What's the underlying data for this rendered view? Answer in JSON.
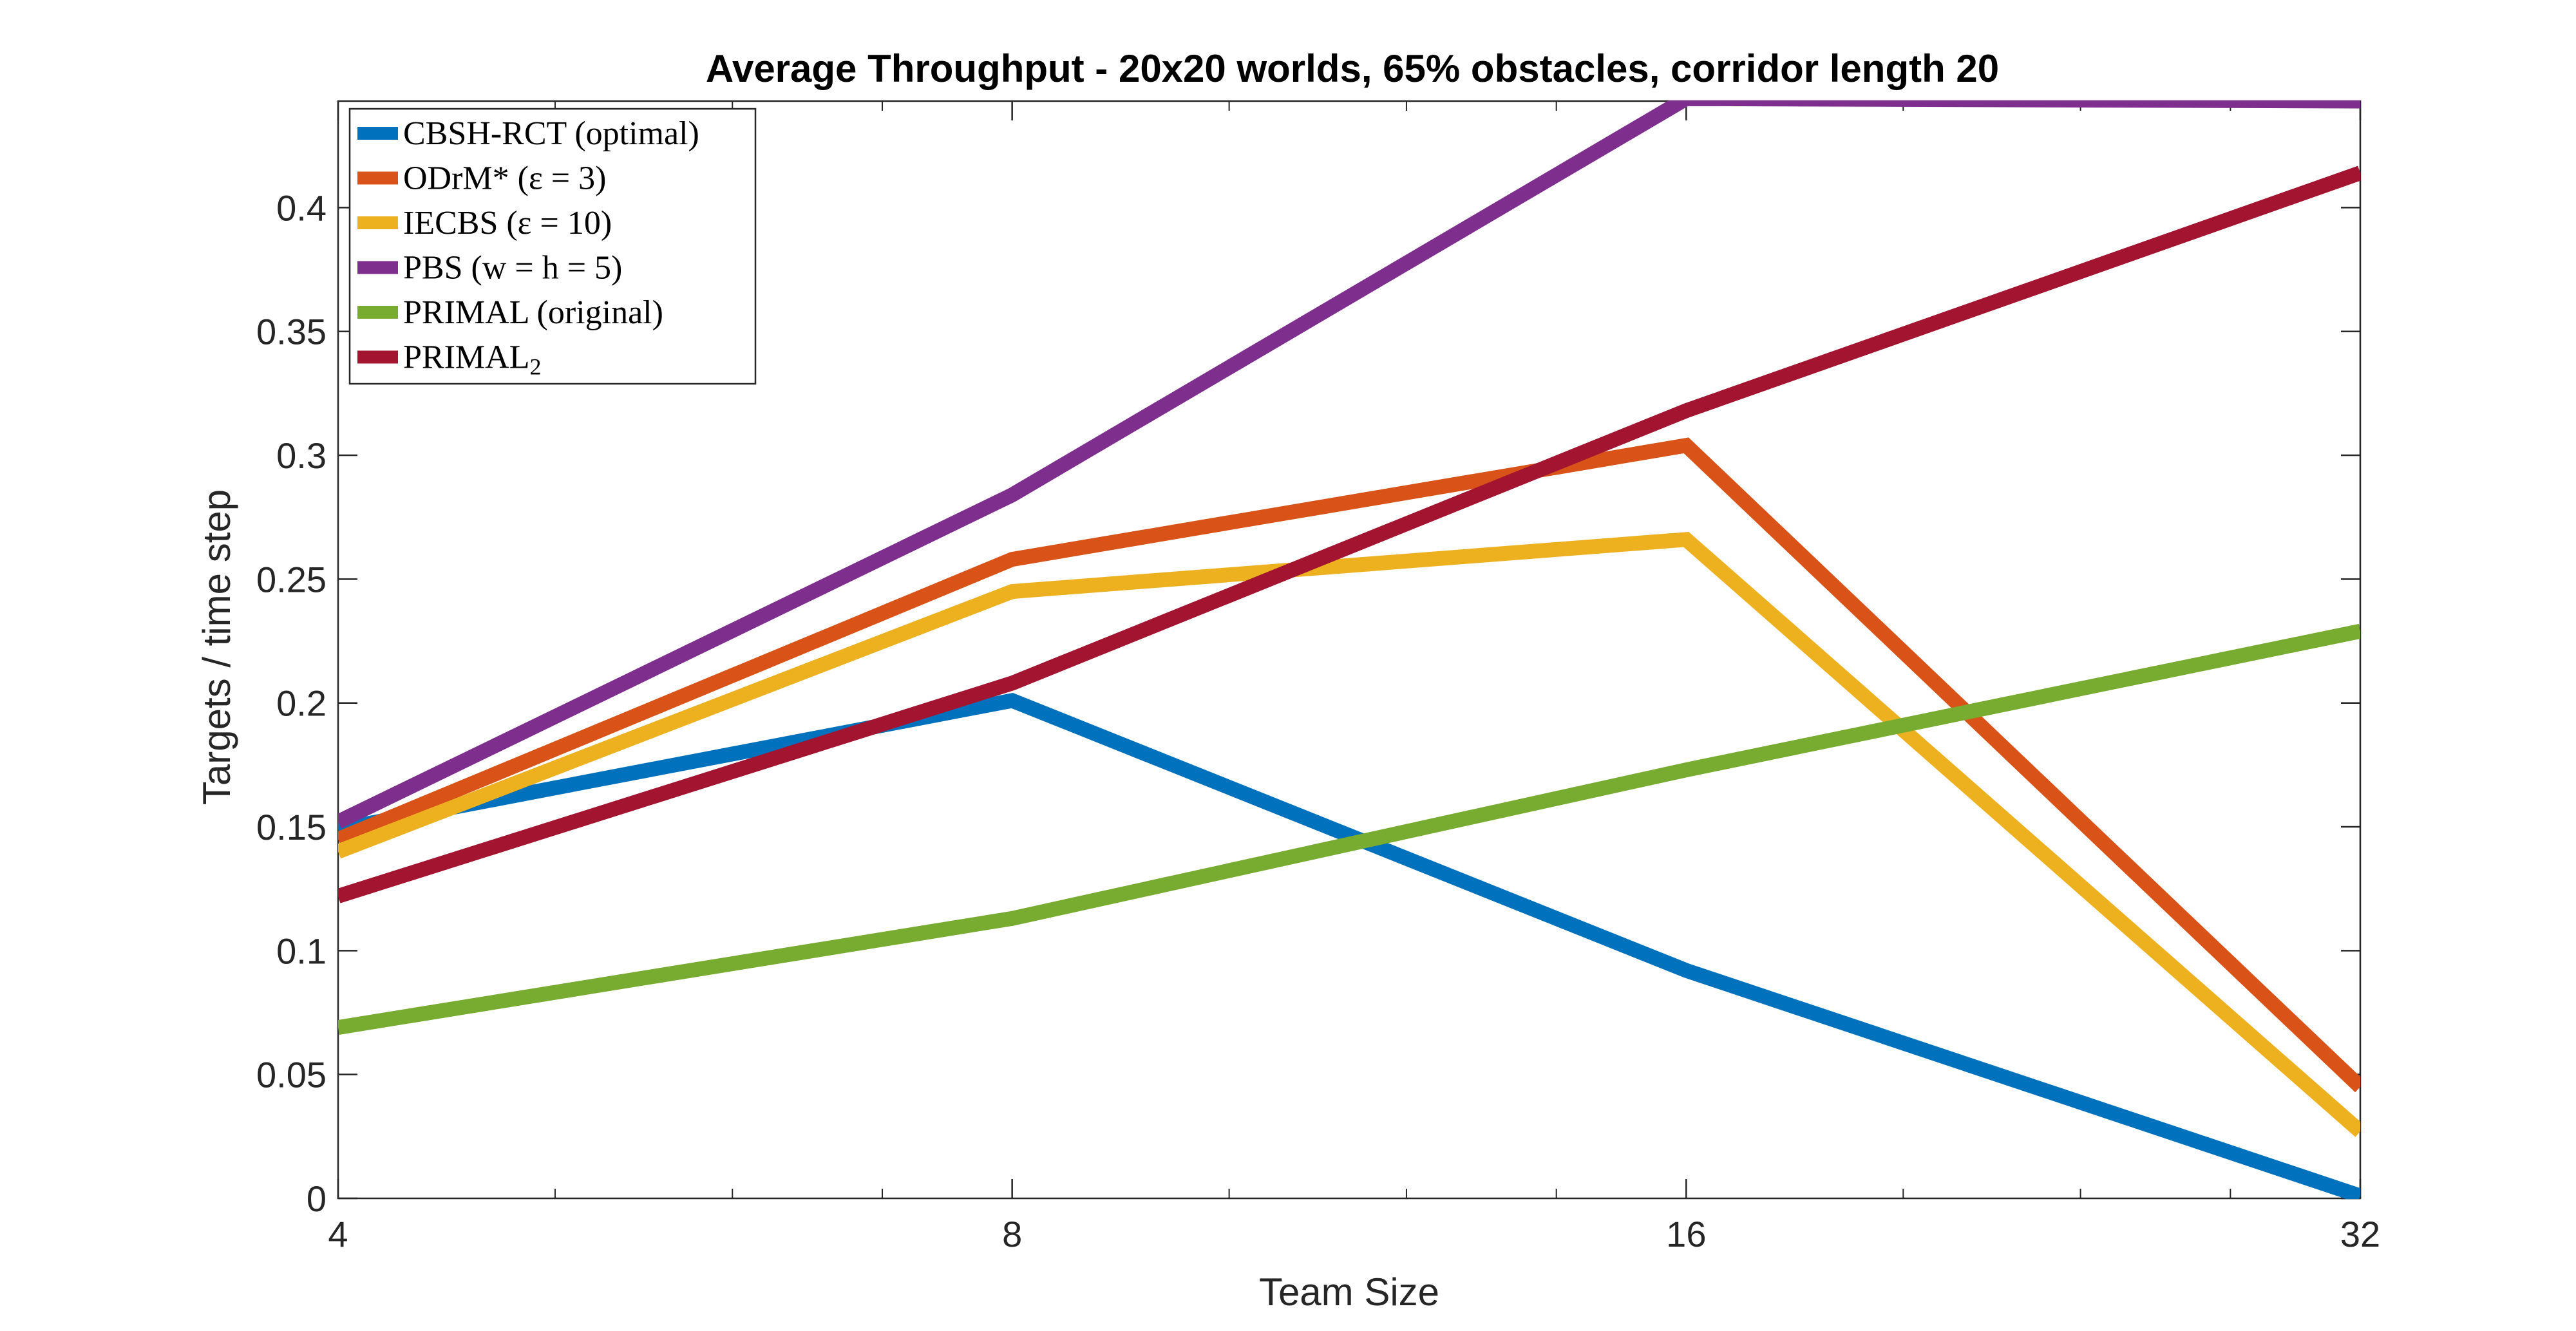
{
  "chart_data": {
    "type": "line",
    "title": "Average Throughput - 20x20 worlds, 65% obstacles, corridor length 20",
    "xlabel": "Team Size",
    "ylabel": "Targets / time step",
    "x_scale": "log2",
    "x": [
      4,
      8,
      16,
      32
    ],
    "x_ticks": [
      "4",
      "8",
      "16",
      "32"
    ],
    "ylim": [
      0,
      0.443
    ],
    "y_ticks": [
      "0",
      "0.05",
      "0.1",
      "0.15",
      "0.2",
      "0.25",
      "0.3",
      "0.35",
      "0.4"
    ],
    "y_tick_values": [
      0,
      0.05,
      0.1,
      0.15,
      0.2,
      0.25,
      0.3,
      0.35,
      0.4
    ],
    "grid": false,
    "legend_position": "top-left",
    "series": [
      {
        "name": "CBSH-RCT (optimal)",
        "color": "#0072BD",
        "values": [
          0.149,
          0.201,
          0.092,
          0.001
        ]
      },
      {
        "name": "ODrM* (ε = 3)",
        "color": "#D95319",
        "values": [
          0.145,
          0.258,
          0.304,
          0.045
        ]
      },
      {
        "name": "IECBS (ε = 10)",
        "color": "#EDB120",
        "values": [
          0.14,
          0.245,
          0.266,
          0.027
        ]
      },
      {
        "name": "PBS (w = h = 5)",
        "color": "#7E2F8E",
        "values": [
          0.152,
          0.284,
          0.444,
          0.443
        ]
      },
      {
        "name": "PRIMAL (original)",
        "color": "#77AC30",
        "values": [
          0.069,
          0.113,
          0.173,
          0.229
        ]
      },
      {
        "name": "PRIMAL",
        "name_subscript": "2",
        "color": "#A2142F",
        "values": [
          0.122,
          0.208,
          0.318,
          0.414
        ]
      }
    ]
  }
}
